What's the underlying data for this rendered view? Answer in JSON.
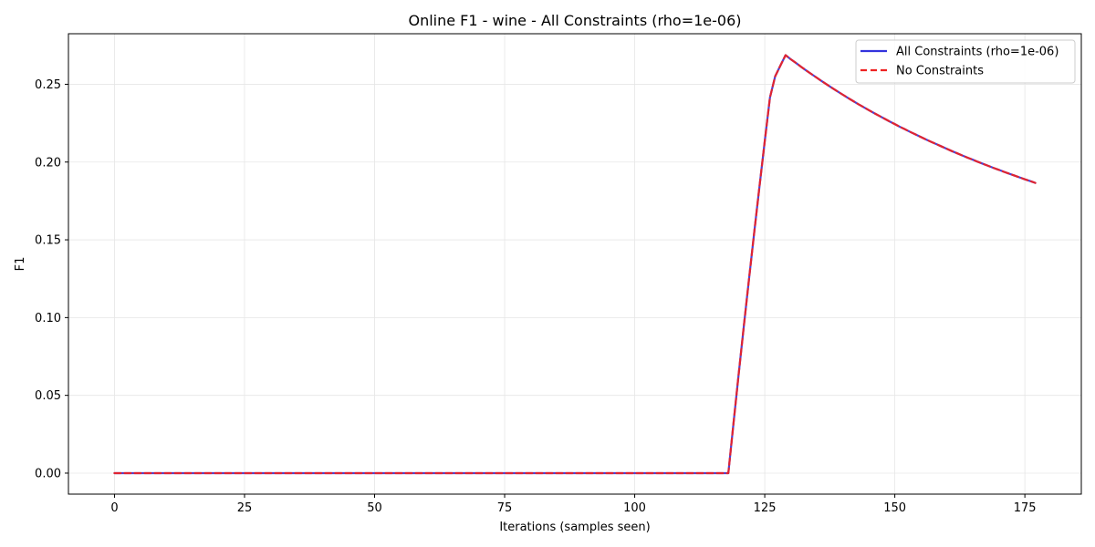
{
  "chart_data": {
    "type": "line",
    "title": "Online F1 - wine - All Constraints (rho=1e-06)",
    "xlabel": "Iterations (samples seen)",
    "ylabel": "F1",
    "xlim": [
      -8.85,
      185.85
    ],
    "ylim": [
      -0.0135,
      0.2825
    ],
    "xticks": [
      0,
      25,
      50,
      75,
      100,
      125,
      150,
      175
    ],
    "yticks": [
      0.0,
      0.05,
      0.1,
      0.15,
      0.2,
      0.25
    ],
    "ytick_labels": [
      "0.00",
      "0.05",
      "0.10",
      "0.15",
      "0.20",
      "0.25"
    ],
    "xtick_labels": [
      "0",
      "25",
      "50",
      "75",
      "100",
      "125",
      "150",
      "175"
    ],
    "grid": true,
    "legend_position": "top-right",
    "series": [
      {
        "name": "All Constraints (rho=1e-06)",
        "color": "#3333dd",
        "style": "solid",
        "x": [
          0,
          118,
          119,
          120,
          121,
          122,
          123,
          124,
          125,
          126,
          127,
          128,
          129,
          130,
          131,
          132,
          133,
          134,
          135,
          136,
          137,
          138,
          139,
          140,
          141,
          142,
          143,
          144,
          145,
          146,
          147,
          148,
          149,
          150,
          151,
          152,
          153,
          154,
          155,
          156,
          157,
          158,
          159,
          160,
          161,
          162,
          163,
          164,
          165,
          166,
          167,
          168,
          169,
          170,
          171,
          172,
          173,
          174,
          175,
          176,
          177
        ],
        "y": [
          0.0,
          0.0,
          0.0323,
          0.0641,
          0.0952,
          0.1256,
          0.1555,
          0.1847,
          0.2134,
          0.2415,
          0.2551,
          0.262,
          0.2687,
          0.2661,
          0.2637,
          0.2612,
          0.2588,
          0.2565,
          0.2542,
          0.2519,
          0.2497,
          0.2475,
          0.2454,
          0.2433,
          0.2412,
          0.2392,
          0.2372,
          0.2353,
          0.2334,
          0.2315,
          0.2297,
          0.2279,
          0.2261,
          0.2244,
          0.2226,
          0.221,
          0.2193,
          0.2177,
          0.2161,
          0.2145,
          0.213,
          0.2115,
          0.21,
          0.2085,
          0.207,
          0.2056,
          0.2042,
          0.2028,
          0.2015,
          0.2001,
          0.1988,
          0.1975,
          0.1962,
          0.195,
          0.1937,
          0.1925,
          0.1913,
          0.1901,
          0.1889,
          0.1878,
          0.1866
        ]
      },
      {
        "name": "No Constraints",
        "color": "#ee2222",
        "style": "dashed",
        "x": [
          0,
          118,
          119,
          120,
          121,
          122,
          123,
          124,
          125,
          126,
          127,
          128,
          129,
          130,
          131,
          132,
          133,
          134,
          135,
          136,
          137,
          138,
          139,
          140,
          141,
          142,
          143,
          144,
          145,
          146,
          147,
          148,
          149,
          150,
          151,
          152,
          153,
          154,
          155,
          156,
          157,
          158,
          159,
          160,
          161,
          162,
          163,
          164,
          165,
          166,
          167,
          168,
          169,
          170,
          171,
          172,
          173,
          174,
          175,
          176,
          177
        ],
        "y": [
          0.0,
          0.0,
          0.0323,
          0.0641,
          0.0952,
          0.1256,
          0.1555,
          0.1847,
          0.2134,
          0.2415,
          0.2551,
          0.262,
          0.2687,
          0.2661,
          0.2637,
          0.2612,
          0.2588,
          0.2565,
          0.2542,
          0.2519,
          0.2497,
          0.2475,
          0.2454,
          0.2433,
          0.2412,
          0.2392,
          0.2372,
          0.2353,
          0.2334,
          0.2315,
          0.2297,
          0.2279,
          0.2261,
          0.2244,
          0.2226,
          0.221,
          0.2193,
          0.2177,
          0.2161,
          0.2145,
          0.213,
          0.2115,
          0.21,
          0.2085,
          0.207,
          0.2056,
          0.2042,
          0.2028,
          0.2015,
          0.2001,
          0.1988,
          0.1975,
          0.1962,
          0.195,
          0.1937,
          0.1925,
          0.1913,
          0.1901,
          0.1889,
          0.1878,
          0.1866
        ]
      }
    ]
  }
}
